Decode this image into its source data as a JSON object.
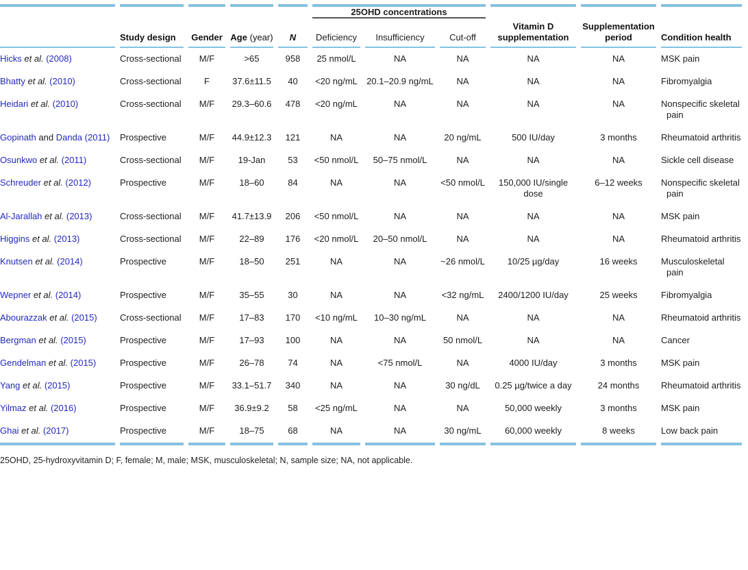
{
  "colors": {
    "accent_rule_blue": "#85c1e0",
    "citation_link_blue": "#2428c0",
    "group_underline_gray": "#555555"
  },
  "table": {
    "group_header": "25OHD concentrations",
    "columns": [
      {
        "label": ""
      },
      {
        "label": "Study design"
      },
      {
        "label": "Gender"
      },
      {
        "label": "Age",
        "suffix": "(year)"
      },
      {
        "label": "N"
      },
      {
        "label": "Deficiency"
      },
      {
        "label": "Insufficiency"
      },
      {
        "label": "Cut-off"
      },
      {
        "label": "Vitamin D supplementation"
      },
      {
        "label": "Supplementation period"
      },
      {
        "label": "Condition health"
      }
    ],
    "rows": [
      {
        "study": [
          {
            "t": "Hicks",
            "s": "link"
          },
          {
            "t": "et al.",
            "s": "etal"
          },
          {
            "t": "(2008)",
            "s": "link"
          }
        ],
        "design": "Cross-sectional",
        "gender": "M/F",
        "age": ">65",
        "n": "958",
        "deficiency": "25 nmol/L",
        "insufficiency": "NA",
        "cutoff": "NA",
        "supplementation": "NA",
        "period": "NA",
        "condition": "MSK pain"
      },
      {
        "study": [
          {
            "t": "Bhatty",
            "s": "link"
          },
          {
            "t": "et al.",
            "s": "etal"
          },
          {
            "t": "(2010)",
            "s": "link"
          }
        ],
        "design": "Cross-sectional",
        "gender": "F",
        "age": "37.6±11.5",
        "n": "40",
        "deficiency": "<20 ng/mL",
        "insufficiency": "20.1–20.9 ng/mL",
        "cutoff": "NA",
        "supplementation": "NA",
        "period": "NA",
        "condition": "Fibromyalgia"
      },
      {
        "study": [
          {
            "t": "Heidari",
            "s": "link"
          },
          {
            "t": "et al.",
            "s": "etal"
          },
          {
            "t": "(2010)",
            "s": "link"
          }
        ],
        "design": "Cross-sectional",
        "gender": "M/F",
        "age": "29.3–60.6",
        "n": "478",
        "deficiency": "<20 ng/mL",
        "insufficiency": "NA",
        "cutoff": "NA",
        "supplementation": "NA",
        "period": "NA",
        "condition": "Nonspecific skeletal pain"
      },
      {
        "study": [
          {
            "t": "Gopinath",
            "s": "link"
          },
          {
            "t": "and",
            "s": "plain"
          },
          {
            "t": "Danda",
            "s": "link"
          },
          {
            "t": "(2011)",
            "s": "link"
          }
        ],
        "design": "Prospective",
        "gender": "M/F",
        "age": "44.9±12.3",
        "n": "121",
        "deficiency": "NA",
        "insufficiency": "NA",
        "cutoff": "20 ng/mL",
        "supplementation": "500 IU/day",
        "period": "3 months",
        "condition": "Rheumatoid arthritis"
      },
      {
        "study": [
          {
            "t": "Osunkwo",
            "s": "link"
          },
          {
            "t": "et al.",
            "s": "etal"
          },
          {
            "t": "(2011)",
            "s": "link"
          }
        ],
        "design": "Cross-sectional",
        "gender": "M/F",
        "age": "19-Jan",
        "n": "53",
        "deficiency": "<50 nmol/L",
        "insufficiency": "50–75 nmol/L",
        "cutoff": "NA",
        "supplementation": "NA",
        "period": "NA",
        "condition": "Sickle cell disease"
      },
      {
        "study": [
          {
            "t": "Schreuder",
            "s": "link"
          },
          {
            "t": "et al.",
            "s": "etal"
          },
          {
            "t": "(2012)",
            "s": "link"
          }
        ],
        "design": "Prospective",
        "gender": "M/F",
        "age": "18–60",
        "n": "84",
        "deficiency": "NA",
        "insufficiency": "NA",
        "cutoff": "<50 nmol/L",
        "supplementation": "150,000 IU/single dose",
        "period": "6–12 weeks",
        "condition": "Nonspecific skeletal pain"
      },
      {
        "study": [
          {
            "t": "Al-Jarallah",
            "s": "link"
          },
          {
            "t": "et al.",
            "s": "etal"
          },
          {
            "t": "(2013)",
            "s": "link"
          }
        ],
        "design": "Cross-sectional",
        "gender": "M/F",
        "age": "41.7±13.9",
        "n": "206",
        "deficiency": "<50 nmol/L",
        "insufficiency": "NA",
        "cutoff": "NA",
        "supplementation": "NA",
        "period": "NA",
        "condition": "MSK pain"
      },
      {
        "study": [
          {
            "t": "Higgins",
            "s": "link"
          },
          {
            "t": "et al.",
            "s": "etal"
          },
          {
            "t": "(2013)",
            "s": "link"
          }
        ],
        "design": "Cross-sectional",
        "gender": "M/F",
        "age": "22–89",
        "n": "176",
        "deficiency": "<20 nmol/L",
        "insufficiency": "20–50 nmol/L",
        "cutoff": "NA",
        "supplementation": "NA",
        "period": "NA",
        "condition": "Rheumatoid arthritis"
      },
      {
        "study": [
          {
            "t": "Knutsen",
            "s": "link"
          },
          {
            "t": "et al.",
            "s": "etal"
          },
          {
            "t": "(2014)",
            "s": "link"
          }
        ],
        "design": "Prospective",
        "gender": "M/F",
        "age": "18–50",
        "n": "251",
        "deficiency": "NA",
        "insufficiency": "NA",
        "cutoff": "~26 nmol/L",
        "supplementation": "10/25 µg/day",
        "period": "16 weeks",
        "condition": "Musculoskeletal pain"
      },
      {
        "study": [
          {
            "t": "Wepner",
            "s": "link"
          },
          {
            "t": "et al.",
            "s": "etal"
          },
          {
            "t": "(2014)",
            "s": "link"
          }
        ],
        "design": "Prospective",
        "gender": "M/F",
        "age": "35–55",
        "n": "30",
        "deficiency": "NA",
        "insufficiency": "NA",
        "cutoff": "<32 ng/mL",
        "supplementation": "2400/1200 IU/day",
        "period": "25 weeks",
        "condition": "Fibromyalgia"
      },
      {
        "study": [
          {
            "t": "Abourazzak",
            "s": "link"
          },
          {
            "t": "et al.",
            "s": "etal"
          },
          {
            "t": "(2015)",
            "s": "link"
          }
        ],
        "design": "Cross-sectional",
        "gender": "M/F",
        "age": "17–83",
        "n": "170",
        "deficiency": "<10 ng/mL",
        "insufficiency": "10–30 ng/mL",
        "cutoff": "NA",
        "supplementation": "NA",
        "period": "NA",
        "condition": "Rheumatoid arthritis"
      },
      {
        "study": [
          {
            "t": "Bergman",
            "s": "link"
          },
          {
            "t": "et al.",
            "s": "etal"
          },
          {
            "t": "(2015)",
            "s": "link"
          }
        ],
        "design": "Prospective",
        "gender": "M/F",
        "age": "17–93",
        "n": "100",
        "deficiency": "NA",
        "insufficiency": "NA",
        "cutoff": "50 nmol/L",
        "supplementation": "NA",
        "period": "NA",
        "condition": "Cancer"
      },
      {
        "study": [
          {
            "t": "Gendelman",
            "s": "link"
          },
          {
            "t": "et al.",
            "s": "etal"
          },
          {
            "t": "(2015)",
            "s": "link"
          }
        ],
        "design": "Prospective",
        "gender": "M/F",
        "age": "26–78",
        "n": "74",
        "deficiency": "NA",
        "insufficiency": "<75 nmol/L",
        "cutoff": "NA",
        "supplementation": "4000 IU/day",
        "period": "3 months",
        "condition": "MSK pain"
      },
      {
        "study": [
          {
            "t": "Yang",
            "s": "link"
          },
          {
            "t": "et al.",
            "s": "etal"
          },
          {
            "t": "(2015)",
            "s": "link"
          }
        ],
        "design": "Prospective",
        "gender": "M/F",
        "age": "33.1–51.7",
        "n": "340",
        "deficiency": "NA",
        "insufficiency": "NA",
        "cutoff": "30 ng/dL",
        "supplementation": "0.25 µg/twice a day",
        "period": "24 months",
        "condition": "Rheumatoid arthritis"
      },
      {
        "study": [
          {
            "t": "Yilmaz",
            "s": "link"
          },
          {
            "t": "et al.",
            "s": "etal"
          },
          {
            "t": "(2016)",
            "s": "link"
          }
        ],
        "design": "Prospective",
        "gender": "M/F",
        "age": "36.9±9.2",
        "n": "58",
        "deficiency": "<25 ng/mL",
        "insufficiency": "NA",
        "cutoff": "NA",
        "supplementation": "50,000 weekly",
        "period": "3 months",
        "condition": "MSK pain"
      },
      {
        "study": [
          {
            "t": "Ghai",
            "s": "link"
          },
          {
            "t": "et al.",
            "s": "etal"
          },
          {
            "t": "(2017)",
            "s": "link"
          }
        ],
        "design": "Prospective",
        "gender": "M/F",
        "age": "18–75",
        "n": "68",
        "deficiency": "NA",
        "insufficiency": "NA",
        "cutoff": "30 ng/mL",
        "supplementation": "60,000 weekly",
        "period": "8 weeks",
        "condition": "Low back pain"
      }
    ]
  },
  "footnote": "25OHD, 25-hydroxyvitamin D; F, female; M, male; MSK, musculoskeletal; N, sample size; NA, not applicable."
}
